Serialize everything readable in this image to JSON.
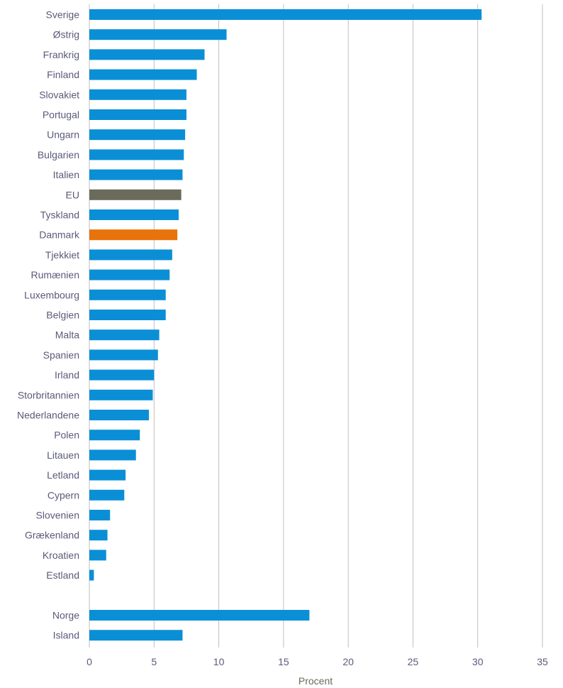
{
  "chart_data": {
    "type": "bar",
    "orientation": "horizontal",
    "xlabel": "Procent",
    "xlim": [
      0,
      35
    ],
    "xticks": [
      0,
      5,
      10,
      15,
      20,
      25,
      30,
      35
    ],
    "grid": true,
    "colors": {
      "default": "#0a8fd6",
      "eu": "#6b6b5c",
      "highlight": "#e8730a",
      "grid": "#bfbfbf",
      "label": "#5a5a7a"
    },
    "rows": [
      {
        "label": "Sverige",
        "value": 30.3,
        "group": "default"
      },
      {
        "label": "Østrig",
        "value": 10.6,
        "group": "default"
      },
      {
        "label": "Frankrig",
        "value": 8.9,
        "group": "default"
      },
      {
        "label": "Finland",
        "value": 8.3,
        "group": "default"
      },
      {
        "label": "Slovakiet",
        "value": 7.5,
        "group": "default"
      },
      {
        "label": "Portugal",
        "value": 7.5,
        "group": "default"
      },
      {
        "label": "Ungarn",
        "value": 7.4,
        "group": "default"
      },
      {
        "label": "Bulgarien",
        "value": 7.3,
        "group": "default"
      },
      {
        "label": "Italien",
        "value": 7.2,
        "group": "default"
      },
      {
        "label": "EU",
        "value": 7.1,
        "group": "eu"
      },
      {
        "label": "Tyskland",
        "value": 6.9,
        "group": "default"
      },
      {
        "label": "Danmark",
        "value": 6.8,
        "group": "highlight"
      },
      {
        "label": "Tjekkiet",
        "value": 6.4,
        "group": "default"
      },
      {
        "label": "Rumænien",
        "value": 6.2,
        "group": "default"
      },
      {
        "label": "Luxembourg",
        "value": 5.9,
        "group": "default"
      },
      {
        "label": "Belgien",
        "value": 5.9,
        "group": "default"
      },
      {
        "label": "Malta",
        "value": 5.4,
        "group": "default"
      },
      {
        "label": "Spanien",
        "value": 5.3,
        "group": "default"
      },
      {
        "label": "Irland",
        "value": 5.0,
        "group": "default"
      },
      {
        "label": "Storbritannien",
        "value": 4.9,
        "group": "default"
      },
      {
        "label": "Nederlandene",
        "value": 4.6,
        "group": "default"
      },
      {
        "label": "Polen",
        "value": 3.9,
        "group": "default"
      },
      {
        "label": "Litauen",
        "value": 3.6,
        "group": "default"
      },
      {
        "label": "Letland",
        "value": 2.8,
        "group": "default"
      },
      {
        "label": "Cypern",
        "value": 2.7,
        "group": "default"
      },
      {
        "label": "Slovenien",
        "value": 1.6,
        "group": "default"
      },
      {
        "label": "Grækenland",
        "value": 1.4,
        "group": "default"
      },
      {
        "label": "Kroatien",
        "value": 1.3,
        "group": "default"
      },
      {
        "label": "Estland",
        "value": 0.35,
        "group": "default"
      },
      {
        "label": "",
        "value": null,
        "group": "gap"
      },
      {
        "label": "Norge",
        "value": 17.0,
        "group": "default"
      },
      {
        "label": "Island",
        "value": 7.2,
        "group": "default"
      }
    ]
  }
}
